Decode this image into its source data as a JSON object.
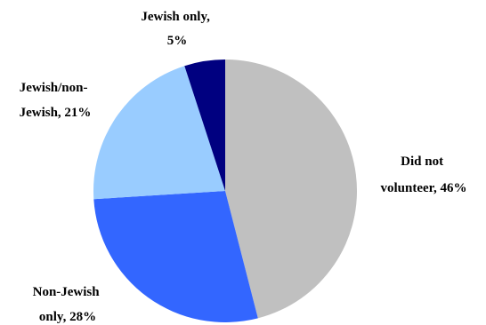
{
  "chart_data": {
    "type": "pie",
    "title": "",
    "slices": [
      {
        "label_lines": [
          "Did not",
          "volunteer, 46%"
        ],
        "value": 46,
        "color": "#c0c0c0"
      },
      {
        "label_lines": [
          "Non-Jewish",
          "only, 28%"
        ],
        "value": 28,
        "color": "#3366ff"
      },
      {
        "label_lines": [
          "Jewish/non-",
          "Jewish, 21%"
        ],
        "value": 21,
        "color": "#99ccff"
      },
      {
        "label_lines": [
          "Jewish only,",
          "5%"
        ],
        "value": 5,
        "color": "#000080"
      }
    ],
    "start_angle_deg": 0,
    "direction": "clockwise",
    "legend": "none",
    "data_labels": "outside"
  }
}
